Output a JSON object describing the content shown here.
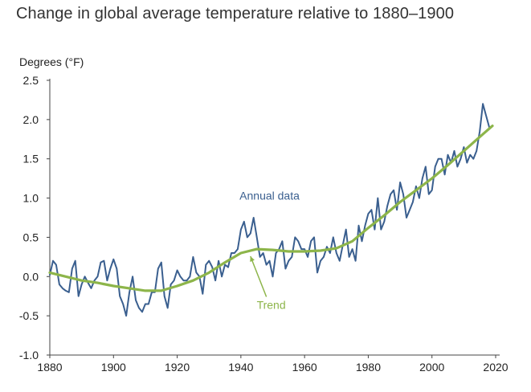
{
  "chart_data": {
    "type": "line",
    "title": "Change in global average temperature relative to 1880–1900",
    "ylabel": "Degrees (°F)",
    "xlim": [
      1880,
      2020
    ],
    "ylim": [
      -1.0,
      2.5
    ],
    "x_ticks": [
      "1880",
      "1900",
      "1920",
      "1940",
      "1960",
      "1980",
      "2000",
      "2020"
    ],
    "y_ticks": [
      "2.5",
      "2.0",
      "1.5",
      "1.0",
      "0.5",
      "0.0",
      "-0.5",
      "-1.0"
    ],
    "grid": false,
    "series": [
      {
        "name": "Annual data",
        "color": "#3a5f8f",
        "x": [
          1880,
          1881,
          1882,
          1883,
          1884,
          1885,
          1886,
          1887,
          1888,
          1889,
          1890,
          1891,
          1892,
          1893,
          1894,
          1895,
          1896,
          1897,
          1898,
          1899,
          1900,
          1901,
          1902,
          1903,
          1904,
          1905,
          1906,
          1907,
          1908,
          1909,
          1910,
          1911,
          1912,
          1913,
          1914,
          1915,
          1916,
          1917,
          1918,
          1919,
          1920,
          1921,
          1922,
          1923,
          1924,
          1925,
          1926,
          1927,
          1928,
          1929,
          1930,
          1931,
          1932,
          1933,
          1934,
          1935,
          1936,
          1937,
          1938,
          1939,
          1940,
          1941,
          1942,
          1943,
          1944,
          1945,
          1946,
          1947,
          1948,
          1949,
          1950,
          1951,
          1952,
          1953,
          1954,
          1955,
          1956,
          1957,
          1958,
          1959,
          1960,
          1961,
          1962,
          1963,
          1964,
          1965,
          1966,
          1967,
          1968,
          1969,
          1970,
          1971,
          1972,
          1973,
          1974,
          1975,
          1976,
          1977,
          1978,
          1979,
          1980,
          1981,
          1982,
          1983,
          1984,
          1985,
          1986,
          1987,
          1988,
          1989,
          1990,
          1991,
          1992,
          1993,
          1994,
          1995,
          1996,
          1997,
          1998,
          1999,
          2000,
          2001,
          2002,
          2003,
          2004,
          2005,
          2006,
          2007,
          2008,
          2009,
          2010,
          2011,
          2012,
          2013,
          2014,
          2015,
          2016,
          2017,
          2018
        ],
        "values": [
          0.02,
          0.2,
          0.15,
          -0.1,
          -0.15,
          -0.18,
          -0.2,
          0.1,
          0.2,
          -0.25,
          -0.1,
          0.0,
          -0.08,
          -0.15,
          -0.05,
          0.0,
          0.18,
          0.2,
          -0.05,
          0.1,
          0.22,
          0.1,
          -0.25,
          -0.35,
          -0.5,
          -0.2,
          0.0,
          -0.3,
          -0.4,
          -0.45,
          -0.35,
          -0.35,
          -0.2,
          -0.2,
          0.1,
          0.18,
          -0.25,
          -0.4,
          -0.1,
          -0.05,
          0.08,
          0.0,
          -0.05,
          -0.05,
          0.0,
          0.25,
          0.05,
          0.0,
          -0.22,
          0.15,
          0.2,
          0.12,
          -0.05,
          0.2,
          0.0,
          0.15,
          0.12,
          0.3,
          0.3,
          0.35,
          0.6,
          0.7,
          0.5,
          0.55,
          0.75,
          0.5,
          0.25,
          0.3,
          0.15,
          0.2,
          0.0,
          0.3,
          0.35,
          0.45,
          0.1,
          0.2,
          0.25,
          0.5,
          0.45,
          0.35,
          0.35,
          0.25,
          0.45,
          0.5,
          0.05,
          0.2,
          0.25,
          0.38,
          0.3,
          0.5,
          0.3,
          0.2,
          0.4,
          0.6,
          0.25,
          0.35,
          0.2,
          0.65,
          0.45,
          0.65,
          0.8,
          0.85,
          0.6,
          1.0,
          0.6,
          0.7,
          0.9,
          1.05,
          1.1,
          0.85,
          1.2,
          1.05,
          0.75,
          0.85,
          0.95,
          1.15,
          1.0,
          1.25,
          1.4,
          1.05,
          1.1,
          1.4,
          1.5,
          1.5,
          1.3,
          1.55,
          1.45,
          1.6,
          1.4,
          1.5,
          1.65,
          1.45,
          1.55,
          1.5,
          1.6,
          1.85,
          2.2,
          2.05,
          1.9
        ]
      },
      {
        "name": "Trend",
        "color": "#8db54a",
        "x": [
          1880,
          1885,
          1890,
          1895,
          1900,
          1905,
          1910,
          1915,
          1920,
          1925,
          1930,
          1935,
          1940,
          1945,
          1950,
          1955,
          1960,
          1965,
          1970,
          1975,
          1980,
          1985,
          1990,
          1995,
          2000,
          2005,
          2010,
          2015,
          2019
        ],
        "values": [
          0.05,
          0.0,
          -0.05,
          -0.08,
          -0.12,
          -0.15,
          -0.18,
          -0.18,
          -0.12,
          -0.05,
          0.05,
          0.18,
          0.3,
          0.35,
          0.34,
          0.32,
          0.32,
          0.33,
          0.36,
          0.45,
          0.62,
          0.78,
          0.95,
          1.1,
          1.25,
          1.42,
          1.6,
          1.78,
          1.92
        ]
      }
    ],
    "annotations": [
      {
        "text": "Annual data",
        "x": 1949,
        "y": 0.98
      },
      {
        "text": "Trend",
        "x": 1947,
        "y": -0.34,
        "arrow_to": [
          1943,
          0.3
        ]
      }
    ]
  }
}
